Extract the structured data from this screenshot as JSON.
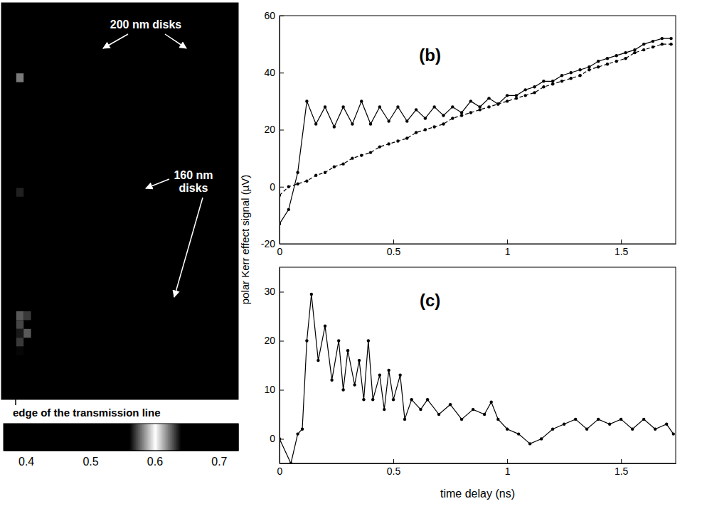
{
  "chart_data": [
    {
      "type": "heatmap",
      "xlim": [
        0,
        32
      ],
      "ylim": [
        0,
        45
      ],
      "tick_labels": false,
      "background_value": 0.45,
      "cells": [
        {
          "x": 2,
          "y": 8,
          "value": 0.58
        },
        {
          "x": 2,
          "y": 21,
          "value": 0.566
        },
        {
          "x": 2,
          "y": 35,
          "value": 0.575
        },
        {
          "x": 3,
          "y": 35,
          "value": 0.57
        },
        {
          "x": 2,
          "y": 36,
          "value": 0.572
        },
        {
          "x": 2,
          "y": 37,
          "value": 0.565
        },
        {
          "x": 3,
          "y": 37,
          "value": 0.575
        },
        {
          "x": 2,
          "y": 38,
          "value": 0.57
        },
        {
          "x": 2,
          "y": 39,
          "value": 0.562
        }
      ],
      "colorbar_range": [
        0.365,
        0.73
      ],
      "colorbar_ticks": [
        0.4,
        0.5,
        0.6,
        0.7
      ],
      "annotations": [
        "200 nm disks",
        "160 nm disks",
        "edge of the transmission line"
      ]
    },
    {
      "type": "line",
      "title": "(b)",
      "y_label": "polar Kerr effect signal (µV)",
      "xlim": [
        0,
        1.74
      ],
      "ylim": [
        -20,
        60
      ],
      "xticks": [
        0,
        0.5,
        1,
        1.5
      ],
      "yticks": [
        -20,
        0,
        20,
        40,
        60
      ],
      "x": [
        0,
        0.04,
        0.08,
        0.12,
        0.16,
        0.2,
        0.24,
        0.28,
        0.32,
        0.36,
        0.4,
        0.44,
        0.48,
        0.52,
        0.56,
        0.6,
        0.64,
        0.68,
        0.72,
        0.76,
        0.8,
        0.84,
        0.88,
        0.92,
        0.96,
        1.0,
        1.04,
        1.08,
        1.12,
        1.16,
        1.2,
        1.24,
        1.28,
        1.32,
        1.36,
        1.4,
        1.44,
        1.48,
        1.52,
        1.56,
        1.6,
        1.64,
        1.68,
        1.72
      ],
      "series": [
        {
          "color": "#000000",
          "marker": "o",
          "line_style": "solid",
          "values": [
            -13,
            -8,
            5,
            30,
            22,
            28,
            21,
            28,
            22,
            30,
            22,
            28,
            23,
            28,
            23,
            27,
            24,
            28,
            25,
            28,
            26,
            30,
            28,
            31,
            29,
            32,
            32,
            34,
            35,
            37,
            37,
            39,
            40,
            41,
            42,
            44,
            45,
            46,
            47,
            48,
            50,
            51,
            52,
            52
          ]
        },
        {
          "color": "#000000",
          "marker": "o",
          "line_style": "dashed",
          "values": [
            -3,
            0,
            1,
            2,
            4,
            5,
            7,
            8,
            10,
            11,
            12,
            14,
            15,
            16,
            17,
            19,
            20,
            21,
            22,
            24,
            25,
            26,
            27,
            28,
            29,
            30,
            31,
            32,
            33,
            35,
            36,
            37,
            38,
            39,
            41,
            42,
            43,
            44,
            45,
            47,
            48,
            49,
            50,
            50
          ]
        }
      ]
    },
    {
      "type": "line",
      "title": "(c)",
      "x_label": "time delay (ns)",
      "xlim": [
        0,
        1.74
      ],
      "ylim": [
        -5,
        35
      ],
      "xticks": [
        0,
        0.5,
        1,
        1.5
      ],
      "yticks": [
        0,
        10,
        20,
        30
      ],
      "x": [
        0,
        0.05,
        0.08,
        0.1,
        0.12,
        0.14,
        0.17,
        0.2,
        0.23,
        0.26,
        0.28,
        0.3,
        0.33,
        0.35,
        0.37,
        0.39,
        0.41,
        0.44,
        0.46,
        0.48,
        0.5,
        0.53,
        0.55,
        0.58,
        0.62,
        0.65,
        0.7,
        0.75,
        0.8,
        0.85,
        0.9,
        0.93,
        0.96,
        1.0,
        1.05,
        1.1,
        1.15,
        1.2,
        1.25,
        1.3,
        1.35,
        1.4,
        1.45,
        1.5,
        1.55,
        1.6,
        1.65,
        1.7,
        1.73
      ],
      "series": [
        {
          "color": "#000000",
          "marker": "o",
          "line_style": "solid",
          "values": [
            0,
            -5,
            1,
            2,
            20,
            29.5,
            16,
            23,
            12,
            20,
            10,
            18,
            11,
            16,
            8,
            20,
            8,
            13,
            6,
            14,
            8,
            13,
            4,
            8,
            6,
            8,
            5,
            7,
            4,
            6,
            5,
            7.5,
            4,
            2,
            1,
            -1,
            0,
            2,
            3,
            4,
            2,
            4,
            3,
            4,
            2,
            4,
            2,
            3,
            1
          ]
        }
      ]
    }
  ]
}
